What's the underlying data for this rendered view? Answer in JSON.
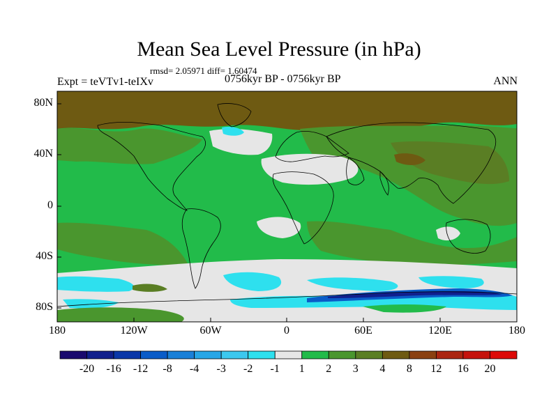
{
  "title": "Mean Sea Level Pressure (in hPa)",
  "stats": "rmsd= 2.05971  diff= 1.60474",
  "experiment": "Expt = teVTv1-teIXv",
  "period": "0756kyr BP - 0756kyr BP",
  "season": "ANN",
  "lat_labels": [
    "80N",
    "40N",
    "0",
    "40S",
    "80S"
  ],
  "lon_labels": [
    "180",
    "120W",
    "60W",
    "0",
    "60E",
    "120E",
    "180"
  ],
  "colorbar": {
    "labels": [
      "-20",
      "-16",
      "-12",
      "-8",
      "-4",
      "-3",
      "-2",
      "-1",
      "1",
      "2",
      "3",
      "4",
      "8",
      "12",
      "16",
      "20"
    ],
    "colors": [
      "#1a0a6e",
      "#101f8c",
      "#0a37a8",
      "#0a5cc8",
      "#1a80d8",
      "#27a6e6",
      "#3cc8ee",
      "#2ee0ee",
      "#e6e6e6",
      "#22bb4a",
      "#4a962e",
      "#5a7e24",
      "#6e5a12",
      "#8a4010",
      "#ab2510",
      "#c5120c",
      "#dd0a08"
    ]
  },
  "map": {
    "colors": {
      "ocean_green": "#22bb4a",
      "olive": "#4a962e",
      "dark_olive": "#5a7e24",
      "brown": "#6e5a12",
      "grey": "#e6e6e6",
      "cyan": "#2ee0ee",
      "light_cyan": "#3cc8ee",
      "blue": "#0a5cc8",
      "dark_blue": "#101f8c"
    }
  }
}
